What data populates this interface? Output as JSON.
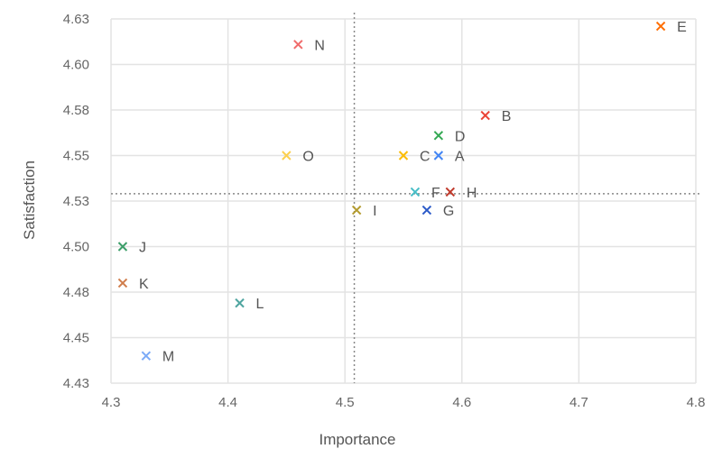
{
  "chart_data": {
    "type": "scatter",
    "title": "",
    "xlabel": "Importance",
    "ylabel": "Satisfaction",
    "xlim": [
      4.3,
      4.8
    ],
    "ylim": [
      4.425,
      4.625
    ],
    "x_ticks": [
      4.3,
      4.4,
      4.5,
      4.6,
      4.7,
      4.8
    ],
    "x_tick_labels": [
      "4.3",
      "4.4",
      "4.5",
      "4.6",
      "4.7",
      "4.8"
    ],
    "y_ticks": [
      4.425,
      4.45,
      4.475,
      4.5,
      4.525,
      4.55,
      4.575,
      4.6,
      4.625
    ],
    "y_tick_labels": [
      "4.43",
      "4.45",
      "4.48",
      "4.50",
      "4.53",
      "4.55",
      "4.58",
      "4.60",
      "4.63"
    ],
    "grid": true,
    "legend": "none",
    "marker": "x",
    "reference_lines": {
      "vertical_x": 4.508,
      "horizontal_y": 4.529,
      "style": "dotted"
    },
    "points": [
      {
        "label": "A",
        "x": 4.58,
        "y": 4.55,
        "color": "#4285F4"
      },
      {
        "label": "B",
        "x": 4.62,
        "y": 4.572,
        "color": "#EA4335"
      },
      {
        "label": "C",
        "x": 4.55,
        "y": 4.55,
        "color": "#FBBC04"
      },
      {
        "label": "D",
        "x": 4.58,
        "y": 4.561,
        "color": "#34A853"
      },
      {
        "label": "E",
        "x": 4.77,
        "y": 4.621,
        "color": "#FF6D01"
      },
      {
        "label": "F",
        "x": 4.56,
        "y": 4.53,
        "color": "#46BDC6"
      },
      {
        "label": "G",
        "x": 4.57,
        "y": 4.52,
        "color": "#2B5AC8"
      },
      {
        "label": "H",
        "x": 4.59,
        "y": 4.53,
        "color": "#C0392B"
      },
      {
        "label": "I",
        "x": 4.51,
        "y": 4.52,
        "color": "#B39B2E"
      },
      {
        "label": "J",
        "x": 4.31,
        "y": 4.5,
        "color": "#3E9E6A"
      },
      {
        "label": "K",
        "x": 4.31,
        "y": 4.48,
        "color": "#D07D4B"
      },
      {
        "label": "L",
        "x": 4.41,
        "y": 4.469,
        "color": "#4FA5A0"
      },
      {
        "label": "M",
        "x": 4.33,
        "y": 4.44,
        "color": "#7BAAF7"
      },
      {
        "label": "N",
        "x": 4.46,
        "y": 4.611,
        "color": "#F06B6B"
      },
      {
        "label": "O",
        "x": 4.45,
        "y": 4.55,
        "color": "#FCD04F"
      }
    ]
  }
}
